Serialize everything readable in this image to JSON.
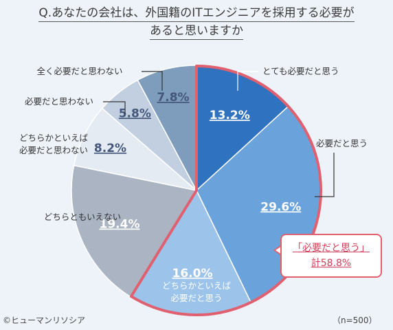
{
  "title_line1": "Q.あなたの会社は、外国籍のITエンジニアを採用する必要が",
  "title_line2": "あると思いますか",
  "credit": "©ヒューマンリソシア",
  "sample_size": "（n=500）",
  "callout": {
    "line1": "「必要だと思う」",
    "line2": "計58.8%"
  },
  "chart_data": {
    "type": "pie",
    "title": "Q.あなたの会社は、外国籍のITエンジニアを採用する必要があると思いますか",
    "start": "12 o'clock, clockwise",
    "slices": [
      {
        "label": "とても必要だと思う",
        "value": 13.2,
        "display": "13.2%",
        "color": "#2f72bf",
        "label_color": "#ffffff"
      },
      {
        "label": "必要だと思う",
        "value": 29.6,
        "display": "29.6%",
        "color": "#6aa3dc",
        "label_color": "#ffffff"
      },
      {
        "label": "どちらかといえば\n必要だと思う",
        "value": 16.0,
        "display": "16.0%",
        "color": "#9cc3ea",
        "label_color": "#ffffff"
      },
      {
        "label": "どちらともいえない",
        "value": 19.4,
        "display": "19.4%",
        "color": "#aab4c3",
        "label_color": "#ffffff"
      },
      {
        "label": "どちらかといえば\n必要だと思わない",
        "value": 8.2,
        "display": "8.2%",
        "color": "#e5ebf3",
        "label_color": "#44577a"
      },
      {
        "label": "必要だと思わない",
        "value": 5.8,
        "display": "5.8%",
        "color": "#c1cfe0",
        "label_color": "#44577a"
      },
      {
        "label": "全く必要だと思わない",
        "value": 7.8,
        "display": "7.8%",
        "color": "#7e9cbc",
        "label_color": "#44577a"
      }
    ],
    "highlight": {
      "slices": [
        0,
        1,
        2
      ],
      "color": "#e06070"
    }
  }
}
